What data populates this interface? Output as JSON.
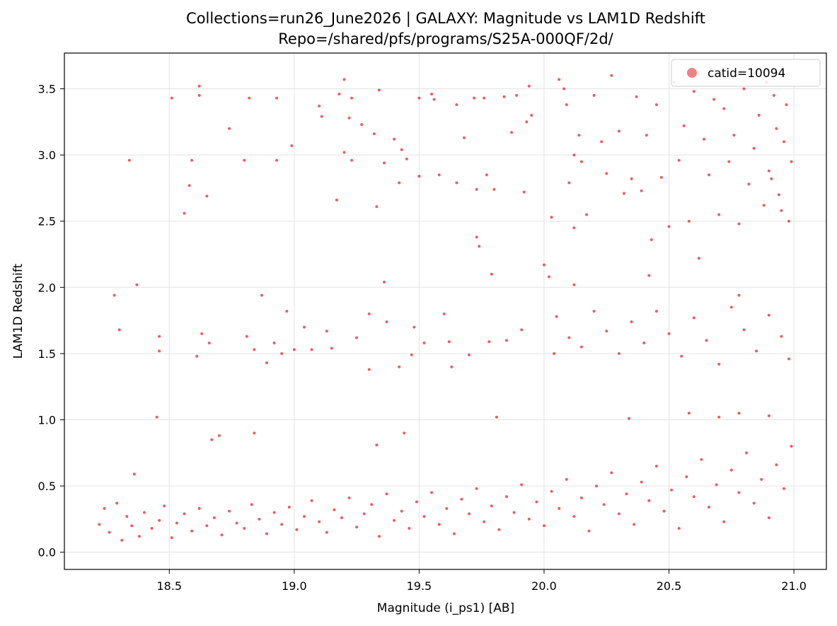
{
  "chart_data": {
    "type": "scatter",
    "title": "Collections=run26_June2026  |  GALAXY: Magnitude vs LAM1D Redshift",
    "subtitle": "Repo=/shared/pfs/programs/S25A-000QF/2d/",
    "xlabel": "Magnitude (i_ps1) [AB]",
    "ylabel": "LAM1D Redshift",
    "xlim": [
      18.08,
      21.13
    ],
    "ylim": [
      -0.13,
      3.77
    ],
    "xticks": [
      18.5,
      19.0,
      19.5,
      20.0,
      20.5,
      21.0
    ],
    "xtick_labels": [
      "18.5",
      "19.0",
      "19.5",
      "20.0",
      "20.5",
      "21.0"
    ],
    "yticks": [
      0.0,
      0.5,
      1.0,
      1.5,
      2.0,
      2.5,
      3.0,
      3.5
    ],
    "ytick_labels": [
      "0.0",
      "0.5",
      "1.0",
      "1.5",
      "2.0",
      "2.5",
      "3.0",
      "3.5"
    ],
    "grid": true,
    "legend_position": "top-right",
    "series": [
      {
        "name": "catid=10094",
        "color": "#e41a1c",
        "points": [
          [
            18.22,
            0.21
          ],
          [
            18.24,
            0.33
          ],
          [
            18.26,
            0.15
          ],
          [
            18.29,
            0.37
          ],
          [
            18.31,
            0.09
          ],
          [
            18.33,
            0.27
          ],
          [
            18.35,
            0.2
          ],
          [
            18.38,
            0.12
          ],
          [
            18.4,
            0.3
          ],
          [
            18.43,
            0.18
          ],
          [
            18.46,
            0.24
          ],
          [
            18.48,
            0.35
          ],
          [
            18.51,
            0.11
          ],
          [
            18.53,
            0.22
          ],
          [
            18.56,
            0.29
          ],
          [
            18.59,
            0.16
          ],
          [
            18.62,
            0.33
          ],
          [
            18.65,
            0.2
          ],
          [
            18.68,
            0.26
          ],
          [
            18.71,
            0.13
          ],
          [
            18.74,
            0.31
          ],
          [
            18.77,
            0.22
          ],
          [
            18.8,
            0.18
          ],
          [
            18.83,
            0.36
          ],
          [
            18.86,
            0.25
          ],
          [
            18.89,
            0.14
          ],
          [
            18.92,
            0.3
          ],
          [
            18.95,
            0.21
          ],
          [
            18.98,
            0.34
          ],
          [
            19.01,
            0.17
          ],
          [
            19.04,
            0.27
          ],
          [
            19.07,
            0.39
          ],
          [
            19.1,
            0.23
          ],
          [
            19.13,
            0.15
          ],
          [
            19.16,
            0.32
          ],
          [
            19.19,
            0.26
          ],
          [
            19.22,
            0.41
          ],
          [
            19.25,
            0.19
          ],
          [
            19.28,
            0.29
          ],
          [
            19.31,
            0.36
          ],
          [
            19.34,
            0.12
          ],
          [
            19.37,
            0.44
          ],
          [
            19.4,
            0.24
          ],
          [
            19.43,
            0.31
          ],
          [
            19.46,
            0.18
          ],
          [
            19.49,
            0.38
          ],
          [
            19.52,
            0.27
          ],
          [
            19.55,
            0.45
          ],
          [
            19.58,
            0.21
          ],
          [
            19.61,
            0.33
          ],
          [
            19.64,
            0.14
          ],
          [
            19.67,
            0.4
          ],
          [
            19.7,
            0.29
          ],
          [
            19.73,
            0.48
          ],
          [
            19.76,
            0.23
          ],
          [
            19.79,
            0.35
          ],
          [
            19.82,
            0.17
          ],
          [
            19.85,
            0.42
          ],
          [
            19.88,
            0.3
          ],
          [
            19.91,
            0.51
          ],
          [
            19.94,
            0.25
          ],
          [
            19.97,
            0.38
          ],
          [
            20.0,
            0.2
          ],
          [
            20.03,
            0.46
          ],
          [
            20.06,
            0.33
          ],
          [
            20.09,
            0.55
          ],
          [
            20.12,
            0.27
          ],
          [
            20.15,
            0.41
          ],
          [
            20.18,
            0.16
          ],
          [
            20.21,
            0.5
          ],
          [
            20.24,
            0.36
          ],
          [
            20.27,
            0.6
          ],
          [
            20.3,
            0.29
          ],
          [
            20.33,
            0.44
          ],
          [
            20.36,
            0.21
          ],
          [
            20.39,
            0.53
          ],
          [
            20.42,
            0.39
          ],
          [
            20.45,
            0.65
          ],
          [
            20.48,
            0.31
          ],
          [
            20.51,
            0.47
          ],
          [
            20.54,
            0.18
          ],
          [
            20.57,
            0.57
          ],
          [
            20.6,
            0.42
          ],
          [
            20.63,
            0.7
          ],
          [
            20.66,
            0.34
          ],
          [
            20.69,
            0.51
          ],
          [
            20.72,
            0.23
          ],
          [
            20.75,
            0.62
          ],
          [
            20.78,
            0.45
          ],
          [
            20.81,
            0.75
          ],
          [
            20.84,
            0.37
          ],
          [
            20.87,
            0.55
          ],
          [
            20.9,
            0.26
          ],
          [
            20.93,
            0.66
          ],
          [
            20.96,
            0.48
          ],
          [
            20.99,
            0.8
          ],
          [
            18.3,
            1.68
          ],
          [
            18.28,
            1.94
          ],
          [
            18.37,
            2.02
          ],
          [
            18.34,
            2.96
          ],
          [
            18.46,
            1.63
          ],
          [
            18.46,
            1.52
          ],
          [
            18.45,
            1.02
          ],
          [
            18.36,
            0.59
          ],
          [
            18.51,
            3.43
          ],
          [
            18.56,
            2.56
          ],
          [
            18.58,
            2.77
          ],
          [
            18.59,
            2.96
          ],
          [
            18.62,
            3.52
          ],
          [
            18.62,
            3.45
          ],
          [
            18.61,
            1.48
          ],
          [
            18.63,
            1.65
          ],
          [
            18.65,
            2.69
          ],
          [
            18.66,
            1.58
          ],
          [
            18.67,
            0.85
          ],
          [
            18.7,
            0.88
          ],
          [
            18.74,
            3.2
          ],
          [
            18.8,
            2.96
          ],
          [
            18.81,
            1.63
          ],
          [
            18.82,
            3.43
          ],
          [
            18.84,
            1.53
          ],
          [
            18.87,
            1.94
          ],
          [
            18.89,
            1.43
          ],
          [
            18.93,
            3.43
          ],
          [
            18.93,
            2.96
          ],
          [
            18.92,
            1.58
          ],
          [
            18.95,
            1.5
          ],
          [
            18.97,
            1.82
          ],
          [
            18.99,
            3.07
          ],
          [
            19.0,
            1.53
          ],
          [
            19.04,
            1.7
          ],
          [
            19.07,
            1.53
          ],
          [
            19.1,
            3.37
          ],
          [
            19.11,
            3.29
          ],
          [
            19.13,
            1.67
          ],
          [
            19.15,
            1.54
          ],
          [
            19.18,
            3.46
          ],
          [
            19.17,
            2.66
          ],
          [
            19.2,
            3.57
          ],
          [
            19.2,
            3.02
          ],
          [
            19.22,
            3.28
          ],
          [
            19.23,
            2.96
          ],
          [
            19.23,
            3.43
          ],
          [
            19.25,
            1.62
          ],
          [
            19.27,
            3.23
          ],
          [
            19.3,
            1.8
          ],
          [
            19.3,
            1.38
          ],
          [
            19.32,
            3.16
          ],
          [
            19.33,
            2.61
          ],
          [
            19.33,
            0.81
          ],
          [
            19.34,
            3.49
          ],
          [
            19.36,
            2.04
          ],
          [
            19.36,
            2.94
          ],
          [
            19.37,
            1.74
          ],
          [
            19.4,
            3.12
          ],
          [
            19.42,
            2.79
          ],
          [
            19.42,
            1.4
          ],
          [
            19.43,
            3.04
          ],
          [
            19.45,
            2.97
          ],
          [
            19.47,
            1.49
          ],
          [
            19.48,
            1.7
          ],
          [
            19.5,
            3.43
          ],
          [
            19.5,
            2.84
          ],
          [
            19.52,
            1.58
          ],
          [
            19.55,
            3.46
          ],
          [
            19.56,
            3.42
          ],
          [
            19.58,
            2.85
          ],
          [
            19.6,
            1.8
          ],
          [
            19.62,
            1.59
          ],
          [
            19.63,
            1.4
          ],
          [
            19.65,
            3.38
          ],
          [
            19.65,
            2.79
          ],
          [
            19.68,
            3.13
          ],
          [
            19.7,
            1.49
          ],
          [
            19.72,
            3.43
          ],
          [
            19.73,
            2.74
          ],
          [
            19.73,
            2.38
          ],
          [
            19.74,
            2.31
          ],
          [
            19.76,
            3.43
          ],
          [
            19.77,
            2.85
          ],
          [
            19.78,
            1.59
          ],
          [
            19.79,
            2.1
          ],
          [
            19.8,
            2.74
          ],
          [
            19.84,
            3.44
          ],
          [
            19.85,
            1.6
          ],
          [
            19.87,
            3.17
          ],
          [
            19.89,
            3.45
          ],
          [
            19.91,
            1.68
          ],
          [
            19.92,
            2.72
          ],
          [
            19.93,
            3.25
          ],
          [
            19.94,
            3.52
          ],
          [
            19.95,
            3.3
          ],
          [
            20.0,
            2.17
          ],
          [
            20.03,
            2.53
          ],
          [
            20.04,
            1.5
          ],
          [
            20.06,
            3.57
          ],
          [
            20.08,
            3.5
          ],
          [
            20.09,
            3.38
          ],
          [
            20.1,
            2.79
          ],
          [
            20.12,
            3.0
          ],
          [
            20.12,
            2.45
          ],
          [
            20.14,
            3.15
          ],
          [
            20.15,
            2.95
          ],
          [
            20.17,
            2.55
          ],
          [
            20.2,
            3.45
          ],
          [
            20.23,
            3.1
          ],
          [
            20.25,
            2.86
          ],
          [
            20.27,
            3.6
          ],
          [
            20.3,
            3.18
          ],
          [
            20.32,
            2.71
          ],
          [
            20.35,
            2.82
          ],
          [
            20.37,
            3.44
          ],
          [
            20.39,
            2.73
          ],
          [
            20.41,
            3.15
          ],
          [
            20.43,
            2.36
          ],
          [
            20.45,
            3.38
          ],
          [
            20.47,
            2.83
          ],
          [
            20.5,
            2.46
          ],
          [
            20.52,
            3.55
          ],
          [
            20.54,
            2.96
          ],
          [
            20.56,
            3.22
          ],
          [
            20.58,
            2.5
          ],
          [
            20.6,
            3.48
          ],
          [
            20.62,
            2.22
          ],
          [
            20.64,
            3.12
          ],
          [
            20.66,
            2.85
          ],
          [
            20.68,
            3.42
          ],
          [
            20.7,
            2.55
          ],
          [
            20.72,
            3.35
          ],
          [
            20.74,
            2.95
          ],
          [
            20.76,
            3.15
          ],
          [
            20.78,
            2.48
          ],
          [
            20.8,
            3.5
          ],
          [
            20.82,
            2.78
          ],
          [
            20.84,
            3.05
          ],
          [
            20.86,
            3.3
          ],
          [
            20.88,
            2.62
          ],
          [
            20.9,
            2.88
          ],
          [
            20.92,
            3.45
          ],
          [
            20.94,
            2.7
          ],
          [
            20.96,
            3.1
          ],
          [
            20.98,
            2.5
          ],
          [
            20.99,
            2.95
          ],
          [
            20.97,
            3.38
          ],
          [
            20.95,
            2.58
          ],
          [
            20.93,
            3.2
          ],
          [
            20.91,
            2.82
          ],
          [
            20.89,
            3.55
          ],
          [
            20.05,
            1.78
          ],
          [
            20.1,
            1.62
          ],
          [
            20.15,
            1.55
          ],
          [
            20.2,
            1.82
          ],
          [
            20.25,
            1.67
          ],
          [
            20.3,
            1.5
          ],
          [
            20.35,
            1.74
          ],
          [
            20.4,
            1.58
          ],
          [
            20.45,
            1.82
          ],
          [
            20.5,
            1.65
          ],
          [
            20.55,
            1.48
          ],
          [
            20.6,
            1.77
          ],
          [
            20.65,
            1.6
          ],
          [
            20.7,
            1.42
          ],
          [
            20.75,
            1.85
          ],
          [
            20.8,
            1.68
          ],
          [
            20.85,
            1.52
          ],
          [
            20.9,
            1.79
          ],
          [
            20.95,
            1.63
          ],
          [
            20.98,
            1.46
          ],
          [
            20.02,
            2.08
          ],
          [
            20.12,
            2.02
          ],
          [
            20.42,
            2.09
          ],
          [
            20.78,
            1.94
          ],
          [
            20.7,
            1.02
          ],
          [
            20.78,
            1.05
          ],
          [
            20.58,
            1.05
          ],
          [
            20.9,
            1.03
          ],
          [
            20.34,
            1.01
          ],
          [
            19.81,
            1.02
          ],
          [
            18.84,
            0.9
          ],
          [
            19.44,
            0.9
          ]
        ]
      }
    ]
  }
}
